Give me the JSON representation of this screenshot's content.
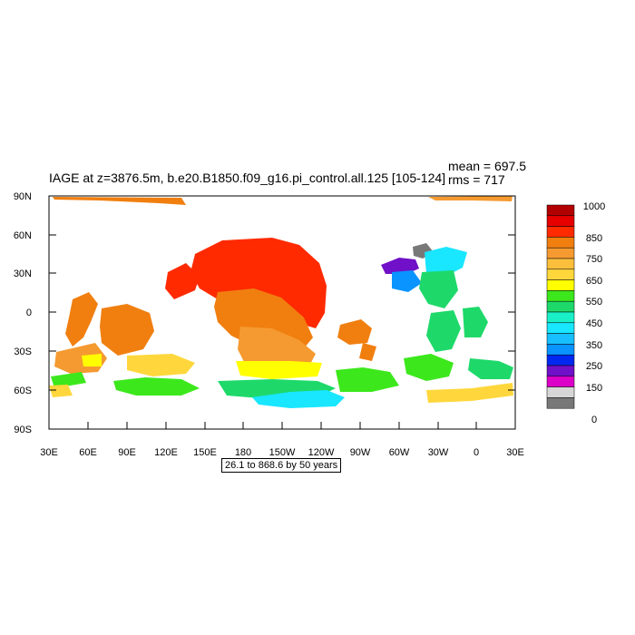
{
  "title": "IAGE at z=3876.5m, b.e20.B1850.f09_g16.pi_control.all.125 [105-124]",
  "stats": {
    "mean": "mean = 697.5",
    "rms": "rms = 717"
  },
  "y_ticks": [
    "90N",
    "60N",
    "30N",
    "0",
    "30S",
    "60S",
    "90S"
  ],
  "x_ticks": [
    "30E",
    "60E",
    "90E",
    "120E",
    "150E",
    "180",
    "150W",
    "120W",
    "90W",
    "60W",
    "30W",
    "0",
    "30E"
  ],
  "caption": "26.1 to 868.6 by 50 years",
  "colorbar": {
    "colors": [
      "#b30000",
      "#e60000",
      "#ff2a00",
      "#f07f10",
      "#f59a30",
      "#fbbf3c",
      "#ffd73c",
      "#ffff00",
      "#3ce81c",
      "#1ed96a",
      "#19f0c8",
      "#19e6ff",
      "#17bfff",
      "#0a94ff",
      "#0028f0",
      "#7010c8",
      "#dc00c8",
      "#d6d6d6",
      "#787878"
    ],
    "labels": [
      "1000",
      "850",
      "750",
      "650",
      "550",
      "450",
      "350",
      "250",
      "150",
      "0"
    ]
  }
}
